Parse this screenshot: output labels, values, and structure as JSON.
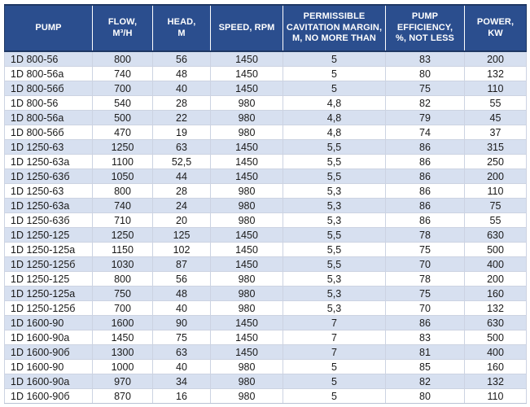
{
  "colors": {
    "header_background": "#2B4E8E",
    "header_border": "#1F3864",
    "header_text": "#FFFFFF",
    "striped_row_background": "#D7E0F0",
    "plain_row_background": "#FFFFFF",
    "body_text": "#1A1A1A",
    "cell_border": "#CCD3E2"
  },
  "table": {
    "columns": [
      {
        "key": "pump",
        "label": "PUMP"
      },
      {
        "key": "flow",
        "label": "FLOW,\nM³/H"
      },
      {
        "key": "head",
        "label": "HEAD,\nM"
      },
      {
        "key": "speed",
        "label": "SPEED, RPM"
      },
      {
        "key": "cavitation",
        "label": "PERMISSIBLE\nCAVITATION MARGIN,\nM, NO MORE THAN"
      },
      {
        "key": "efficiency",
        "label": "PUMP\nEFFICIENCY,\n%, NOT LESS"
      },
      {
        "key": "power",
        "label": "POWER,\nKW"
      }
    ],
    "rows": [
      [
        "1D 800-56",
        "800",
        "56",
        "1450",
        "5",
        "83",
        "200"
      ],
      [
        "1D 800-56a",
        "740",
        "48",
        "1450",
        "5",
        "80",
        "132"
      ],
      [
        "1D 800-56б",
        "700",
        "40",
        "1450",
        "5",
        "75",
        "110"
      ],
      [
        "1D 800-56",
        "540",
        "28",
        "980",
        "4,8",
        "82",
        "55"
      ],
      [
        "1D 800-56a",
        "500",
        "22",
        "980",
        "4,8",
        "79",
        "45"
      ],
      [
        "1D 800-56б",
        "470",
        "19",
        "980",
        "4,8",
        "74",
        "37"
      ],
      [
        "1D 1250-63",
        "1250",
        "63",
        "1450",
        "5,5",
        "86",
        "315"
      ],
      [
        "1D 1250-63a",
        "1100",
        "52,5",
        "1450",
        "5,5",
        "86",
        "250"
      ],
      [
        "1D 1250-63б",
        "1050",
        "44",
        "1450",
        "5,5",
        "86",
        "200"
      ],
      [
        "1D 1250-63",
        "800",
        "28",
        "980",
        "5,3",
        "86",
        "110"
      ],
      [
        "1D 1250-63a",
        "740",
        "24",
        "980",
        "5,3",
        "86",
        "75"
      ],
      [
        "1D 1250-63б",
        "710",
        "20",
        "980",
        "5,3",
        "86",
        "55"
      ],
      [
        "1D 1250-125",
        "1250",
        "125",
        "1450",
        "5,5",
        "78",
        "630"
      ],
      [
        "1D 1250-125a",
        "1150",
        "102",
        "1450",
        "5,5",
        "75",
        "500"
      ],
      [
        "1D 1250-125б",
        "1030",
        "87",
        "1450",
        "5,5",
        "70",
        "400"
      ],
      [
        "1D 1250-125",
        "800",
        "56",
        "980",
        "5,3",
        "78",
        "200"
      ],
      [
        "1D 1250-125a",
        "750",
        "48",
        "980",
        "5,3",
        "75",
        "160"
      ],
      [
        "1D 1250-125б",
        "700",
        "40",
        "980",
        "5,3",
        "70",
        "132"
      ],
      [
        "1D 1600-90",
        "1600",
        "90",
        "1450",
        "7",
        "86",
        "630"
      ],
      [
        "1D 1600-90a",
        "1450",
        "75",
        "1450",
        "7",
        "83",
        "500"
      ],
      [
        "1D 1600-90б",
        "1300",
        "63",
        "1450",
        "7",
        "81",
        "400"
      ],
      [
        "1D 1600-90",
        "1000",
        "40",
        "980",
        "5",
        "85",
        "160"
      ],
      [
        "1D 1600-90a",
        "970",
        "34",
        "980",
        "5",
        "82",
        "132"
      ],
      [
        "1D 1600-90б",
        "870",
        "16",
        "980",
        "5",
        "80",
        "110"
      ]
    ]
  }
}
